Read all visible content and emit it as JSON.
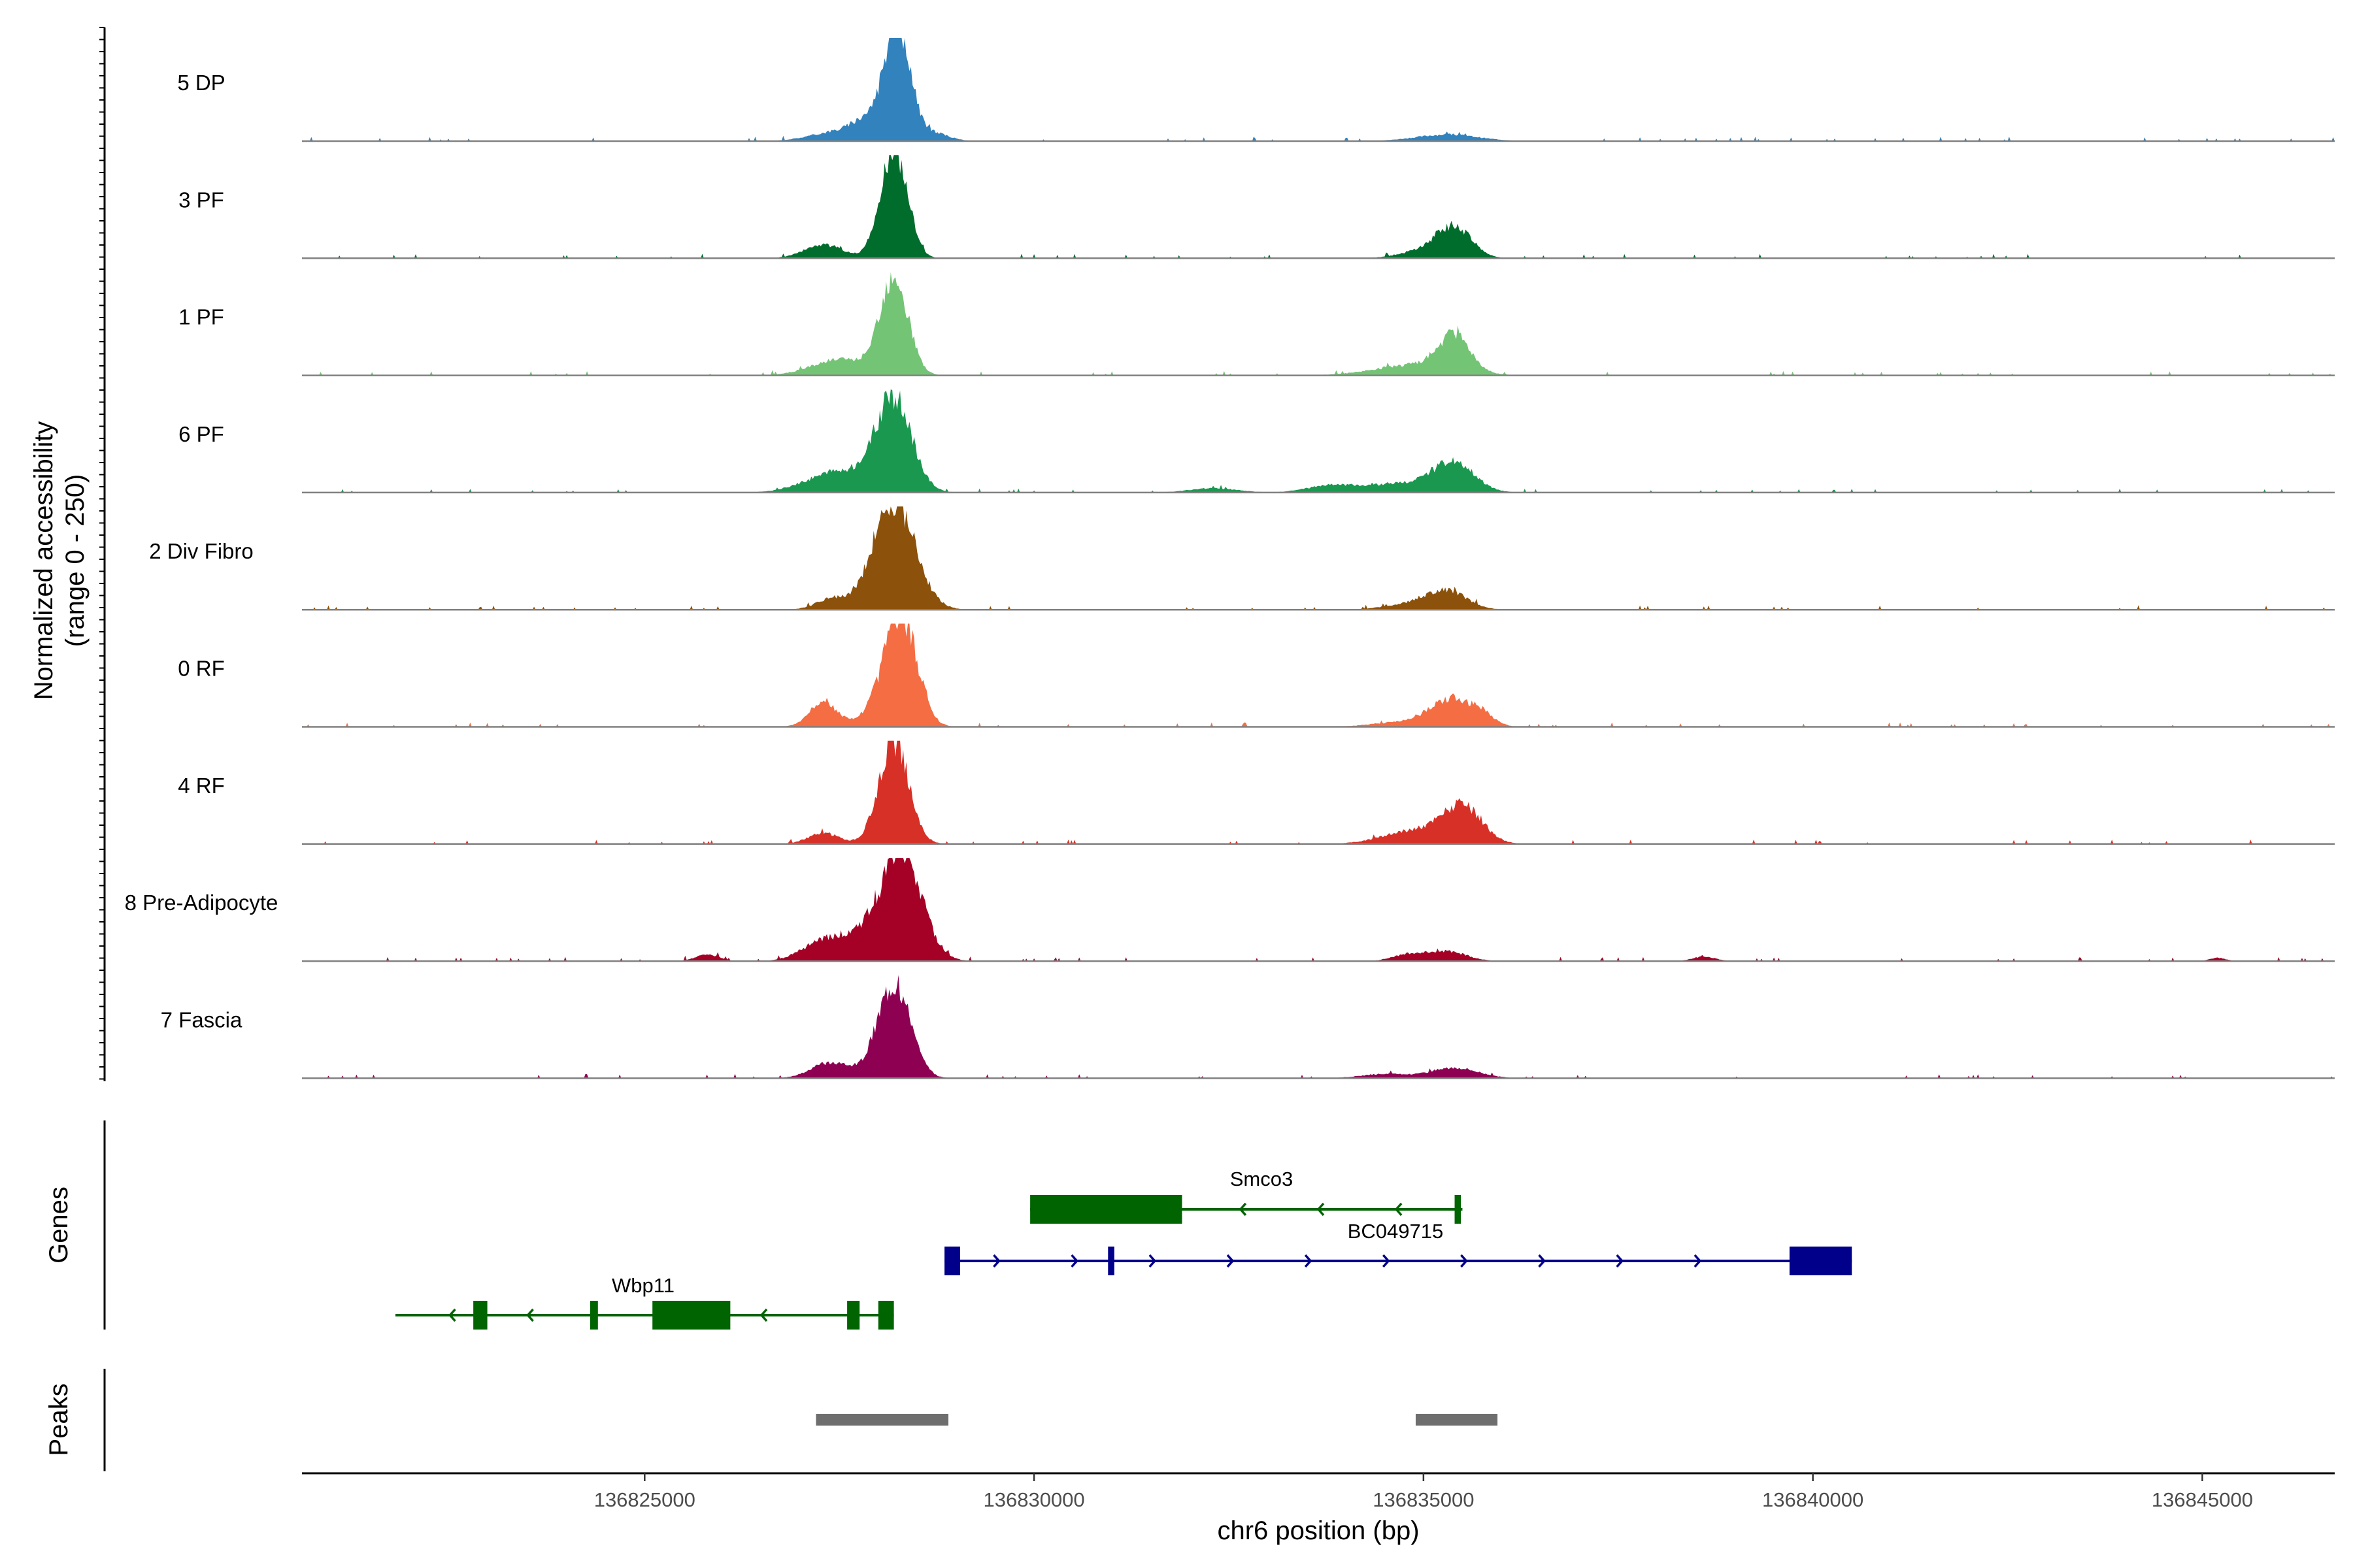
{
  "chart_data": {
    "type": "area",
    "title": "",
    "ylabel_line1": "Normalized accessibility",
    "ylabel_line2": "(range 0 - 250)",
    "ylim": [
      0,
      250
    ],
    "xlabel": "chr6 position (bp)",
    "xlim": [
      136820600,
      136846700
    ],
    "x_ticks": [
      136825000,
      136830000,
      136835000,
      136840000,
      136845000
    ],
    "x_tick_labels": [
      "136825000",
      "136830000",
      "136835000",
      "136840000",
      "136845000"
    ],
    "tracks": [
      {
        "name": "5 DP",
        "color": "#3182bd",
        "peaks": [
          [
            136828250,
            210,
            160
          ],
          [
            136827900,
            35,
            200
          ],
          [
            136827500,
            18,
            350
          ],
          [
            136828700,
            15,
            200
          ],
          [
            136835300,
            12,
            400
          ]
        ]
      },
      {
        "name": "3 PF",
        "color": "#006d2c",
        "peaks": [
          [
            136828200,
            205,
            170
          ],
          [
            136827300,
            25,
            250
          ],
          [
            136835400,
            55,
            220
          ],
          [
            136835000,
            14,
            300
          ]
        ]
      },
      {
        "name": "1 PF",
        "color": "#74c476",
        "peaks": [
          [
            136828200,
            185,
            180
          ],
          [
            136827500,
            30,
            350
          ],
          [
            136835400,
            65,
            200
          ],
          [
            136834900,
            20,
            500
          ]
        ]
      },
      {
        "name": "6 PF",
        "color": "#1a9850",
        "peaks": [
          [
            136828200,
            170,
            230
          ],
          [
            136827500,
            40,
            400
          ],
          [
            136835400,
            50,
            250
          ],
          [
            136834800,
            18,
            500
          ],
          [
            136833800,
            12,
            300
          ],
          [
            136832300,
            8,
            300
          ]
        ]
      },
      {
        "name": "2 Div Fibro",
        "color": "#8c510a",
        "peaks": [
          [
            136828200,
            200,
            270
          ],
          [
            136827400,
            20,
            200
          ],
          [
            136835300,
            35,
            250
          ],
          [
            136834800,
            10,
            300
          ]
        ]
      },
      {
        "name": "0 RF",
        "color": "#f46d43",
        "peaks": [
          [
            136828300,
            200,
            200
          ],
          [
            136827300,
            45,
            180
          ],
          [
            136828000,
            30,
            200
          ],
          [
            136835300,
            45,
            220
          ],
          [
            136835700,
            30,
            180
          ],
          [
            136834800,
            10,
            400
          ]
        ]
      },
      {
        "name": "4 RF",
        "color": "#d73027",
        "peaks": [
          [
            136828200,
            190,
            190
          ],
          [
            136827300,
            20,
            200
          ],
          [
            136835500,
            65,
            250
          ],
          [
            136834900,
            25,
            400
          ]
        ]
      },
      {
        "name": "8 Pre-Adipocyte",
        "color": "#a50026",
        "peaks": [
          [
            136828300,
            190,
            260
          ],
          [
            136827700,
            45,
            350
          ],
          [
            136827200,
            20,
            250
          ],
          [
            136825800,
            12,
            150
          ],
          [
            136835300,
            18,
            250
          ],
          [
            136834800,
            12,
            200
          ],
          [
            136838600,
            8,
            150
          ],
          [
            136845200,
            6,
            100
          ]
        ]
      },
      {
        "name": "7 Fascia",
        "color": "#8e0152",
        "peaks": [
          [
            136828200,
            180,
            210
          ],
          [
            136827400,
            30,
            250
          ],
          [
            136835400,
            20,
            300
          ],
          [
            136834500,
            8,
            300
          ]
        ]
      }
    ],
    "genes_label": "Genes",
    "peaks_label": "Peaks",
    "genes": [
      {
        "name": "Smco3",
        "color": "#006400",
        "strand": "-",
        "start": 136829950,
        "end": 136835500,
        "exons": [
          [
            136829950,
            136831900
          ],
          [
            136835400,
            136835480
          ]
        ]
      },
      {
        "name": "BC049715",
        "color": "#00008b",
        "strand": "+",
        "start": 136828850,
        "end": 136840500,
        "exons": [
          [
            136828850,
            136829050
          ],
          [
            136830950,
            136831030
          ],
          [
            136839700,
            136840500
          ]
        ]
      },
      {
        "name": "Wbp11",
        "color": "#006400",
        "strand": "-",
        "start": 136821800,
        "end": 136828200,
        "exons": [
          [
            136822800,
            136822980
          ],
          [
            136824300,
            136824400
          ],
          [
            136825100,
            136826100
          ],
          [
            136827600,
            136827760
          ],
          [
            136828000,
            136828200
          ]
        ]
      }
    ],
    "peak_regions": [
      [
        136827200,
        136828900
      ],
      [
        136834900,
        136835950
      ]
    ]
  }
}
